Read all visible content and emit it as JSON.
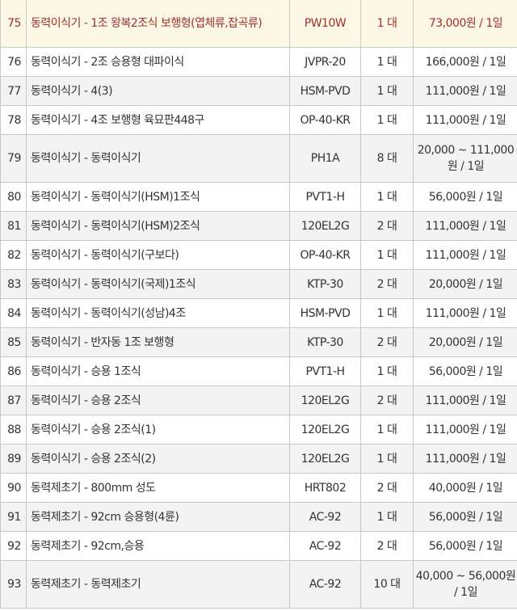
{
  "highlight_color": "#a2302f",
  "rows": [
    {
      "no": "75",
      "name": "동력이식기 - 1조 왕복2조식 보행형(엽체류,잡곡류)",
      "model": "PW10W",
      "qty": "1 대",
      "price": "73,000원 / 1일"
    },
    {
      "no": "76",
      "name": "동력이식기 - 2조 승용형 대파이식",
      "model": "JVPR-20",
      "qty": "1 대",
      "price": "166,000원 / 1일"
    },
    {
      "no": "77",
      "name": "동력이식기 - 4(3)",
      "model": "HSM-PVD",
      "qty": "1 대",
      "price": "111,000원 / 1일"
    },
    {
      "no": "78",
      "name": "동력이식기 - 4조 보행형 육묘판448구",
      "model": "OP-40-KR",
      "qty": "1 대",
      "price": "111,000원 / 1일"
    },
    {
      "no": "79",
      "name": "동력이식기 - 동력이식기",
      "model": "PH1A",
      "qty": "8 대",
      "price": "20,000 ~ 111,000원 / 1일"
    },
    {
      "no": "80",
      "name": "동력이식기 - 동력이식기(HSM)1조식",
      "model": "PVT1-H",
      "qty": "1 대",
      "price": "56,000원 / 1일"
    },
    {
      "no": "81",
      "name": "동력이식기 - 동력이식기(HSM)2조식",
      "model": "120EL2G",
      "qty": "2 대",
      "price": "111,000원 / 1일"
    },
    {
      "no": "82",
      "name": "동력이식기 - 동력이식기(구보다)",
      "model": "OP-40-KR",
      "qty": "1 대",
      "price": "111,000원 / 1일"
    },
    {
      "no": "83",
      "name": "동력이식기 - 동력이식기(국제)1조식",
      "model": "KTP-30",
      "qty": "2 대",
      "price": "20,000원 / 1일"
    },
    {
      "no": "84",
      "name": "동력이식기 - 동력이식기(성남)4조",
      "model": "HSM-PVD",
      "qty": "1 대",
      "price": "111,000원 / 1일"
    },
    {
      "no": "85",
      "name": "동력이식기 - 반자동 1조 보행형",
      "model": "KTP-30",
      "qty": "2 대",
      "price": "20,000원 / 1일"
    },
    {
      "no": "86",
      "name": "동력이식기 - 승용 1조식",
      "model": "PVT1-H",
      "qty": "1 대",
      "price": "56,000원 / 1일"
    },
    {
      "no": "87",
      "name": "동력이식기 - 승용 2조식",
      "model": "120EL2G",
      "qty": "2 대",
      "price": "111,000원 / 1일"
    },
    {
      "no": "88",
      "name": "동력이식기 - 승용 2조식(1)",
      "model": "120EL2G",
      "qty": "1 대",
      "price": "111,000원 / 1일"
    },
    {
      "no": "89",
      "name": "동력이식기 - 승용 2조식(2)",
      "model": "120EL2G",
      "qty": "1 대",
      "price": "111,000원 / 1일"
    },
    {
      "no": "90",
      "name": "동력제초기 - 800mm 성도",
      "model": "HRT802",
      "qty": "2 대",
      "price": "40,000원 / 1일"
    },
    {
      "no": "91",
      "name": "동력제초기 - 92cm 승용형(4륜)",
      "model": "AC-92",
      "qty": "1 대",
      "price": "56,000원 / 1일"
    },
    {
      "no": "92",
      "name": "동력제초기 - 92cm,승용",
      "model": "AC-92",
      "qty": "2 대",
      "price": "56,000원 / 1일"
    },
    {
      "no": "93",
      "name": "동력제초기 - 동력제초기",
      "model": "AC-92",
      "qty": "10 대",
      "price": "40,000 ~ 56,000원 / 1일"
    }
  ]
}
